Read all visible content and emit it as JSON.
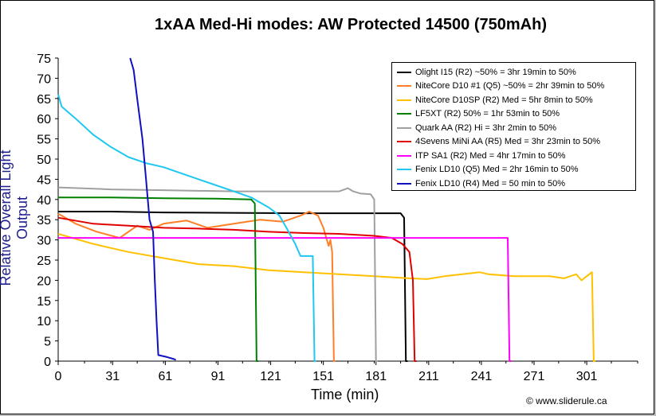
{
  "credit": "© www.sliderule.ca",
  "chart_data": {
    "type": "line",
    "title": "1xAA Med-Hi modes: AW Protected 14500 (750mAh)",
    "xlabel": "Time (min)",
    "ylabel": "Relative Overall Light Output",
    "xlim": [
      0,
      330
    ],
    "ylim": [
      0,
      75
    ],
    "xticks": [
      0,
      31,
      61,
      91,
      121,
      151,
      181,
      211,
      241,
      271,
      301
    ],
    "yticks": [
      0,
      5,
      10,
      15,
      20,
      25,
      30,
      35,
      40,
      45,
      50,
      55,
      60,
      65,
      70,
      75
    ],
    "grid": false,
    "legend_position": "top-right",
    "series": [
      {
        "name": "Olight I15 (R2) ~50% = 3hr 19min to 50%",
        "color": "#000000",
        "points": [
          [
            0,
            37
          ],
          [
            30,
            37
          ],
          [
            60,
            36.8
          ],
          [
            100,
            36.7
          ],
          [
            140,
            36.6
          ],
          [
            170,
            36.6
          ],
          [
            195,
            36.6
          ],
          [
            197,
            35.5
          ],
          [
            198,
            0
          ],
          [
            199,
            0
          ]
        ]
      },
      {
        "name": "NiteCore D10 #1 (Q5) ~50% = 2hr 39min to 50%",
        "color": "#ff7f27",
        "points": [
          [
            0,
            36.5
          ],
          [
            10,
            34
          ],
          [
            22,
            32
          ],
          [
            35,
            30.5
          ],
          [
            45,
            33.5
          ],
          [
            52,
            32.5
          ],
          [
            60,
            34
          ],
          [
            73,
            34.8
          ],
          [
            85,
            33
          ],
          [
            100,
            34
          ],
          [
            115,
            35
          ],
          [
            128,
            34.5
          ],
          [
            138,
            36
          ],
          [
            143,
            37
          ],
          [
            148,
            36
          ],
          [
            151,
            33
          ],
          [
            154,
            28.5
          ],
          [
            155,
            30
          ],
          [
            156,
            27
          ],
          [
            157,
            0
          ],
          [
            158,
            0
          ]
        ]
      },
      {
        "name": "NiteCore D10SP (R2) Med = 5hr 8min to 50%",
        "color": "#ffc000",
        "points": [
          [
            0,
            31.5
          ],
          [
            20,
            29
          ],
          [
            40,
            27
          ],
          [
            60,
            25.5
          ],
          [
            80,
            24
          ],
          [
            100,
            23.5
          ],
          [
            120,
            22.5
          ],
          [
            140,
            22
          ],
          [
            160,
            21.5
          ],
          [
            180,
            21
          ],
          [
            200,
            20.5
          ],
          [
            210,
            20.3
          ],
          [
            220,
            21
          ],
          [
            240,
            22
          ],
          [
            245,
            21.5
          ],
          [
            260,
            21
          ],
          [
            280,
            21
          ],
          [
            288,
            20.5
          ],
          [
            295,
            21.5
          ],
          [
            298,
            20
          ],
          [
            301,
            21
          ],
          [
            304,
            22
          ],
          [
            305,
            0
          ],
          [
            306,
            0
          ]
        ]
      },
      {
        "name": "LF5XT (R2) 50% = 1hr 53min to 50%",
        "color": "#008000",
        "points": [
          [
            0,
            40.5
          ],
          [
            30,
            40.5
          ],
          [
            60,
            40.3
          ],
          [
            90,
            40.2
          ],
          [
            110,
            40
          ],
          [
            112,
            39
          ],
          [
            113,
            0
          ],
          [
            114,
            0
          ]
        ]
      },
      {
        "name": "Quark AA (R2) Hi = 3hr 2min to 50%",
        "color": "#a0a0a0",
        "points": [
          [
            0,
            43
          ],
          [
            30,
            42.5
          ],
          [
            60,
            42.3
          ],
          [
            100,
            42
          ],
          [
            140,
            42
          ],
          [
            160,
            42
          ],
          [
            165,
            42.8
          ],
          [
            168,
            42
          ],
          [
            172,
            41.5
          ],
          [
            178,
            41.3
          ],
          [
            180,
            40
          ],
          [
            181,
            0
          ],
          [
            182,
            0
          ]
        ]
      },
      {
        "name": "4Sevens MiNi AA (R5) Med = 3hr 23min to 50%",
        "color": "#e00000",
        "points": [
          [
            0,
            35.5
          ],
          [
            20,
            34
          ],
          [
            40,
            33.5
          ],
          [
            60,
            33
          ],
          [
            80,
            32.8
          ],
          [
            100,
            32.5
          ],
          [
            120,
            32
          ],
          [
            140,
            31.7
          ],
          [
            160,
            31.5
          ],
          [
            180,
            31
          ],
          [
            190,
            30.5
          ],
          [
            196,
            29
          ],
          [
            200,
            27
          ],
          [
            202,
            20
          ],
          [
            203,
            0
          ],
          [
            204,
            0
          ]
        ]
      },
      {
        "name": "ITP SA1 (R2) Med = 4hr 17min to 50%",
        "color": "#ff00ff",
        "points": [
          [
            0,
            30.5
          ],
          [
            60,
            30.5
          ],
          [
            120,
            30.5
          ],
          [
            180,
            30.5
          ],
          [
            240,
            30.5
          ],
          [
            256,
            30.5
          ],
          [
            257,
            0
          ],
          [
            258,
            0
          ]
        ]
      },
      {
        "name": "Fenix LD10 (Q5) Med = 2hr 16min to 50%",
        "color": "#1ec8f0",
        "points": [
          [
            0,
            66
          ],
          [
            2,
            63
          ],
          [
            10,
            60
          ],
          [
            20,
            56
          ],
          [
            30,
            53
          ],
          [
            40,
            50.5
          ],
          [
            50,
            49
          ],
          [
            60,
            48
          ],
          [
            70,
            46.5
          ],
          [
            80,
            45
          ],
          [
            90,
            43.5
          ],
          [
            100,
            42
          ],
          [
            110,
            40.5
          ],
          [
            120,
            38
          ],
          [
            126,
            36
          ],
          [
            130,
            33
          ],
          [
            135,
            29
          ],
          [
            138,
            26
          ],
          [
            142,
            26
          ],
          [
            145,
            26
          ],
          [
            146,
            0
          ],
          [
            147,
            0
          ]
        ]
      },
      {
        "name": "Fenix LD10 (R4) Med = 50 min to 50%",
        "color": "#1010c0",
        "points": [
          [
            41,
            75
          ],
          [
            43,
            72
          ],
          [
            45,
            65
          ],
          [
            48,
            55
          ],
          [
            50,
            45
          ],
          [
            52,
            35
          ],
          [
            54,
            32
          ],
          [
            55,
            20
          ],
          [
            56,
            10
          ],
          [
            57,
            1.5
          ],
          [
            62,
            1
          ],
          [
            66,
            0.5
          ],
          [
            67,
            0.3
          ]
        ]
      }
    ]
  }
}
